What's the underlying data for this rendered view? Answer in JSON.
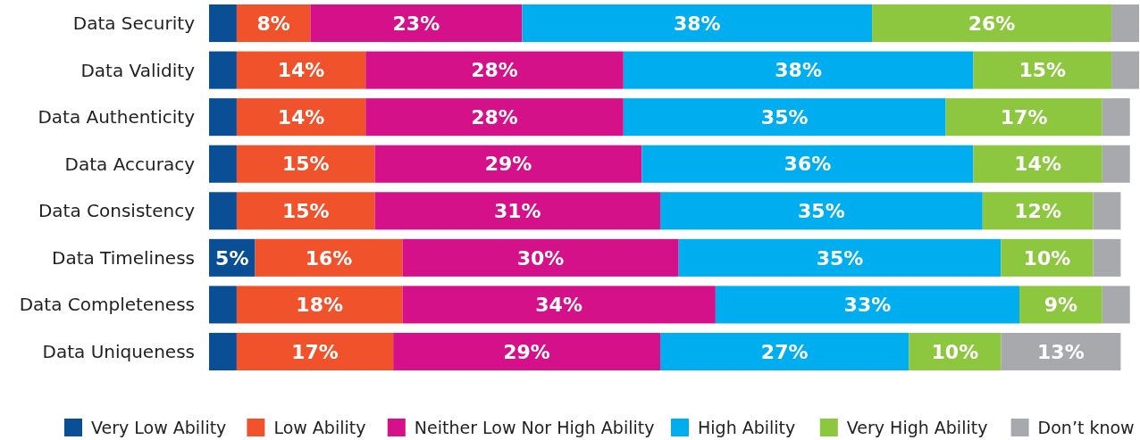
{
  "chart_data": {
    "type": "bar",
    "orientation": "horizontal",
    "stacked": true,
    "legend": "bottom",
    "tick_labels": "y",
    "xlim": [
      0,
      101
    ],
    "categories": [
      "Data Security",
      "Data Validity",
      "Data Authenticity",
      "Data Accuracy",
      "Data Consistency",
      "Data Timeliness",
      "Data Completeness",
      "Data Uniqueness"
    ],
    "series": [
      {
        "name": "Very Low Ability",
        "color": "#0a4f96",
        "values": [
          3,
          3,
          3,
          3,
          3,
          5,
          3,
          3
        ],
        "value_labels": [
          null,
          null,
          null,
          null,
          null,
          "5%",
          null,
          null
        ]
      },
      {
        "name": "Low Ability",
        "color": "#f0522b",
        "values": [
          8,
          14,
          14,
          15,
          15,
          16,
          18,
          17
        ],
        "value_labels": [
          "8%",
          "14%",
          "14%",
          "15%",
          "15%",
          "16%",
          "18%",
          "17%"
        ]
      },
      {
        "name": "Neither Low Nor High Ability",
        "color": "#d5118a",
        "values": [
          23,
          28,
          28,
          29,
          31,
          30,
          34,
          29
        ],
        "value_labels": [
          "23%",
          "28%",
          "28%",
          "29%",
          "31%",
          "30%",
          "34%",
          "29%"
        ]
      },
      {
        "name": "High Ability",
        "color": "#00aeef",
        "values": [
          38,
          38,
          35,
          36,
          35,
          35,
          33,
          27
        ],
        "value_labels": [
          "38%",
          "38%",
          "35%",
          "36%",
          "35%",
          "35%",
          "33%",
          "27%"
        ]
      },
      {
        "name": "Very High Ability",
        "color": "#8dc63f",
        "values": [
          26,
          15,
          17,
          14,
          12,
          10,
          9,
          10
        ],
        "value_labels": [
          "26%",
          "15%",
          "17%",
          "14%",
          "12%",
          "10%",
          "9%",
          "10%"
        ]
      },
      {
        "name": "Don’t know",
        "color": "#a7a9ac",
        "values": [
          3,
          3,
          3,
          3,
          3,
          3,
          3,
          13
        ],
        "value_labels": [
          null,
          null,
          null,
          null,
          null,
          null,
          null,
          "13%"
        ]
      }
    ]
  }
}
